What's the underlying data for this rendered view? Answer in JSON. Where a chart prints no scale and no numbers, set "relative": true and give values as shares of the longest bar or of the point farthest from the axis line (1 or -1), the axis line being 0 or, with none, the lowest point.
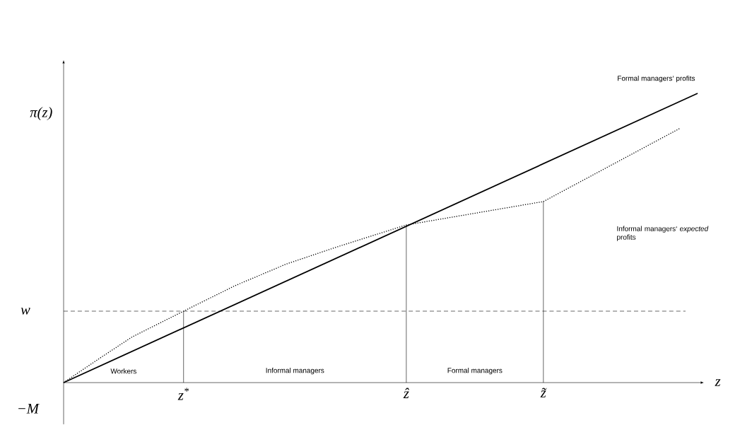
{
  "chart_data": {
    "type": "line",
    "relative": true,
    "xlabel": "z",
    "ylabel": "π(z)",
    "categories": [
      null,
      null,
      null,
      null,
      null,
      null,
      null,
      "z$^{*}$",
      null,
      null,
      null,
      null,
      null,
      null,
      null,
      null,
      null,
      null,
      null,
      null,
      "ẑ",
      null,
      null,
      null,
      null,
      null,
      null,
      null,
      "z̃",
      null,
      null,
      null,
      null,
      null,
      null,
      null,
      null,
      null
    ],
    "series": [
      {
        "name": "Formal managers‘ profits",
        "color": "#000000",
        "line_style": "solid",
        "values": [
          0,
          null,
          null,
          null,
          null,
          null,
          null,
          null,
          null,
          null,
          null,
          null,
          null,
          null,
          null,
          null,
          null,
          null,
          null,
          null,
          null,
          null,
          null,
          null,
          null,
          null,
          null,
          null,
          null,
          null,
          null,
          null,
          null,
          null,
          null,
          null,
          null,
          1.0
        ]
      },
      {
        "name": "Informal managers‘ *expected* profits",
        "color": "#000000",
        "line_style": "dotted",
        "values": [
          0,
          null,
          0.08,
          null,
          0.158,
          null,
          null,
          0.247,
          null,
          null,
          0.335,
          null,
          null,
          0.41,
          null,
          null,
          0.47,
          null,
          null,
          null,
          0.545,
          null,
          null,
          null,
          null,
          null,
          null,
          null,
          0.626,
          null,
          null,
          null,
          null,
          null,
          null,
          null,
          0.88,
          null
        ]
      }
    ],
    "ref_lines": [
      {
        "axis": "y",
        "value": 0.247,
        "label": "w",
        "line_style": "dashed",
        "color": "#000000"
      },
      {
        "axis": "x",
        "value": "z$^{*}$",
        "line_style": "solid",
        "color": "#000000"
      },
      {
        "axis": "x",
        "value": "ẑ",
        "line_style": "solid",
        "color": "#000000"
      },
      {
        "axis": "x",
        "value": "z̃",
        "line_style": "solid",
        "color": "#000000"
      }
    ],
    "annotations": [
      "Workers",
      "Informal managers",
      "Formal managers",
      "−M"
    ],
    "marker": "none"
  }
}
